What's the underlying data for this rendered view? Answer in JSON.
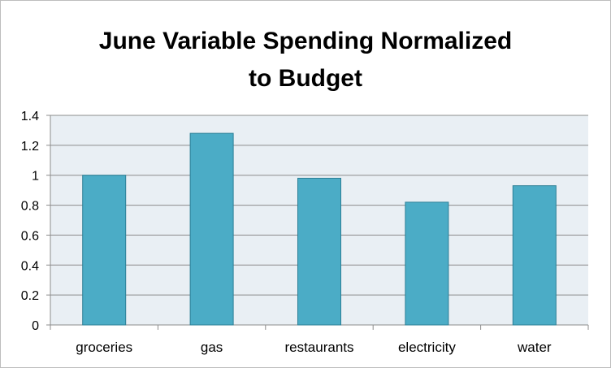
{
  "chart_data": {
    "type": "bar",
    "title_lines": [
      "June Variable Spending Normalized",
      "to Budget"
    ],
    "categories": [
      "groceries",
      "gas",
      "restaurants",
      "electricity",
      "water"
    ],
    "values": [
      1.0,
      1.28,
      0.98,
      0.82,
      0.93
    ],
    "y_ticks": [
      "0",
      "0.2",
      "0.4",
      "0.6",
      "0.8",
      "1",
      "1.2",
      "1.4"
    ],
    "ylim": [
      0,
      1.4
    ],
    "grid": true,
    "legend": "none",
    "colors": {
      "bar_fill": "#4bacc6",
      "bar_stroke": "#2c7f96",
      "plot_background": "#e9eff4",
      "grid_line": "#8c8c8c",
      "axis_line": "#8c8c8c"
    }
  }
}
